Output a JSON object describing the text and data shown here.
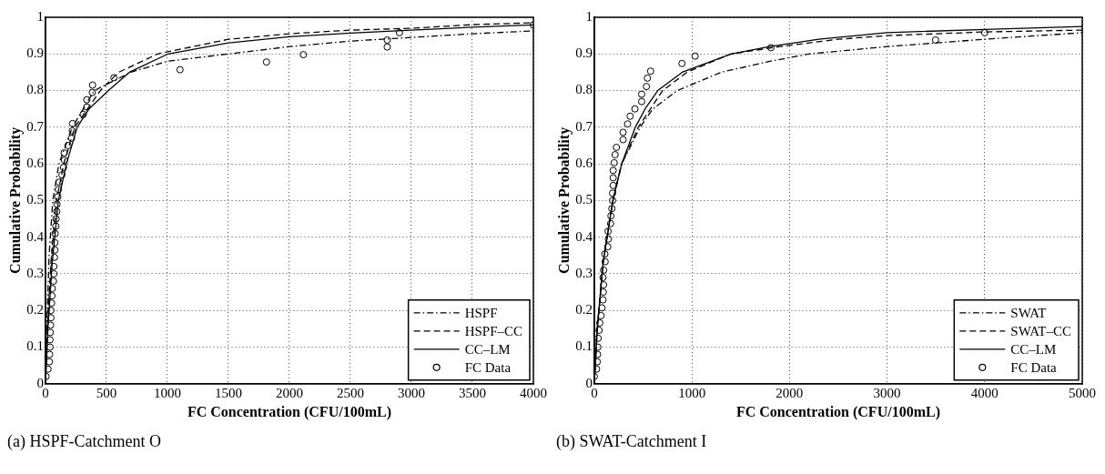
{
  "chart_data": [
    {
      "type": "line",
      "title": "(a) HSPF-Catchment O",
      "xlabel": "FC Concentration (CFU/100mL)",
      "ylabel": "Cumulative Probability",
      "xlim": [
        0,
        4000
      ],
      "xticks": [
        0,
        500,
        1000,
        1500,
        2000,
        2500,
        3000,
        3500,
        4000
      ],
      "ylim": [
        0,
        1
      ],
      "yticks": [
        0,
        0.1,
        0.2,
        0.3,
        0.4,
        0.5,
        0.6,
        0.7,
        0.8,
        0.9,
        1
      ],
      "grid": true,
      "legend": "bottom right",
      "series": [
        {
          "name": "HSPF",
          "line_style": "dashdot",
          "color": "#000000",
          "x": [
            0,
            10,
            30,
            60,
            110,
            220,
            400,
            700,
            1000,
            1500,
            2000,
            2500,
            3000,
            3500,
            4000
          ],
          "values": [
            0,
            0.15,
            0.35,
            0.5,
            0.6,
            0.7,
            0.8,
            0.85,
            0.88,
            0.9,
            0.92,
            0.935,
            0.945,
            0.955,
            0.963
          ]
        },
        {
          "name": "HSPF–CC",
          "line_style": "dashed",
          "color": "#000000",
          "x": [
            0,
            15,
            45,
            90,
            150,
            240,
            450,
            600,
            920,
            1500,
            2000,
            2500,
            3000,
            3500,
            4000
          ],
          "values": [
            0,
            0.15,
            0.33,
            0.5,
            0.6,
            0.7,
            0.8,
            0.85,
            0.9,
            0.94,
            0.955,
            0.965,
            0.97,
            0.98,
            0.985
          ]
        },
        {
          "name": "CC–LM",
          "line_style": "solid",
          "color": "#000000",
          "x": [
            0,
            20,
            55,
            106,
            172,
            260,
            357,
            516,
            688,
            1005,
            1500,
            2000,
            2500,
            3000,
            3500,
            4000
          ],
          "values": [
            0,
            0.15,
            0.33,
            0.5,
            0.6,
            0.7,
            0.75,
            0.8,
            0.85,
            0.9,
            0.93,
            0.947,
            0.957,
            0.965,
            0.973,
            0.979
          ]
        },
        {
          "name": "FC Data",
          "type": "scatter",
          "marker": "circle",
          "color": "#000000",
          "x": [
            5,
            21,
            32,
            34,
            37,
            37,
            40,
            42,
            45,
            45,
            50,
            53,
            56,
            66,
            69,
            69,
            74,
            77,
            77,
            79,
            85,
            87,
            93,
            95,
            101,
            106,
            111,
            135,
            148,
            156,
            153,
            185,
            214,
            220,
            222,
            310,
            339,
            339,
            384,
            386,
            561,
            1103,
            1812,
            2114,
            2802,
            2802,
            2902,
            4000
          ],
          "values": [
            0.02,
            0.04,
            0.06,
            0.08,
            0.1,
            0.12,
            0.14,
            0.16,
            0.18,
            0.2,
            0.22,
            0.24,
            0.26,
            0.28,
            0.3,
            0.32,
            0.345,
            0.365,
            0.385,
            0.41,
            0.43,
            0.45,
            0.47,
            0.49,
            0.51,
            0.53,
            0.55,
            0.57,
            0.59,
            0.61,
            0.63,
            0.65,
            0.67,
            0.69,
            0.71,
            0.735,
            0.755,
            0.775,
            0.795,
            0.815,
            0.835,
            0.857,
            0.878,
            0.898,
            0.919,
            0.938,
            0.958,
            0.979
          ]
        }
      ]
    },
    {
      "type": "line",
      "title": "(b) SWAT-Catchment I",
      "xlabel": "FC Concentration (CFU/100mL)",
      "ylabel": "Cumulative Probability",
      "xlim": [
        0,
        5000
      ],
      "xticks": [
        0,
        1000,
        2000,
        3000,
        4000,
        5000
      ],
      "ylim": [
        0,
        1
      ],
      "yticks": [
        0,
        0.1,
        0.2,
        0.3,
        0.4,
        0.5,
        0.6,
        0.7,
        0.8,
        0.9,
        1
      ],
      "grid": true,
      "legend": "bottom right",
      "series": [
        {
          "name": "SWAT",
          "line_style": "dashdot",
          "color": "#000000",
          "x": [
            0,
            30,
            90,
            190,
            280,
            470,
            600,
            850,
            1300,
            1800,
            2200,
            3000,
            4000,
            5000
          ],
          "values": [
            0,
            0.15,
            0.33,
            0.5,
            0.6,
            0.7,
            0.75,
            0.8,
            0.85,
            0.88,
            0.9,
            0.92,
            0.94,
            0.958
          ]
        },
        {
          "name": "SWAT–CC",
          "line_style": "dashed",
          "color": "#000000",
          "x": [
            0,
            30,
            90,
            190,
            280,
            450,
            700,
            950,
            1400,
            1900,
            2500,
            3000,
            4000,
            5000
          ],
          "values": [
            0,
            0.15,
            0.33,
            0.5,
            0.6,
            0.7,
            0.8,
            0.85,
            0.9,
            0.92,
            0.94,
            0.95,
            0.96,
            0.965
          ]
        },
        {
          "name": "CC–LM",
          "line_style": "solid",
          "color": "#000000",
          "x": [
            0,
            30,
            90,
            190,
            280,
            420,
            520,
            650,
            900,
            1200,
            1400,
            1800,
            2300,
            3000,
            4000,
            5000
          ],
          "values": [
            0,
            0.15,
            0.33,
            0.5,
            0.6,
            0.7,
            0.75,
            0.8,
            0.85,
            0.88,
            0.9,
            0.92,
            0.94,
            0.958,
            0.967,
            0.975
          ]
        },
        {
          "name": "FC Data",
          "type": "scatter",
          "marker": "circle",
          "color": "#000000",
          "x": [
            0,
            23,
            30,
            33,
            36,
            39,
            49,
            56,
            69,
            79,
            89,
            92,
            95,
            89,
            95,
            111,
            108,
            138,
            144,
            141,
            167,
            170,
            180,
            187,
            187,
            193,
            193,
            193,
            203,
            213,
            226,
            295,
            295,
            341,
            367,
            416,
            485,
            485,
            534,
            544,
            577,
            898,
            1033,
            1810,
            3497,
            4000
          ],
          "values": [
            0.02,
            0.04,
            0.06,
            0.08,
            0.1,
            0.124,
            0.146,
            0.166,
            0.186,
            0.207,
            0.229,
            0.25,
            0.27,
            0.29,
            0.31,
            0.333,
            0.354,
            0.374,
            0.395,
            0.416,
            0.437,
            0.458,
            0.478,
            0.5,
            0.52,
            0.541,
            0.562,
            0.582,
            0.603,
            0.625,
            0.645,
            0.666,
            0.686,
            0.709,
            0.73,
            0.75,
            0.77,
            0.79,
            0.811,
            0.834,
            0.853,
            0.874,
            0.894,
            0.917,
            0.938,
            0.958
          ]
        }
      ]
    }
  ]
}
